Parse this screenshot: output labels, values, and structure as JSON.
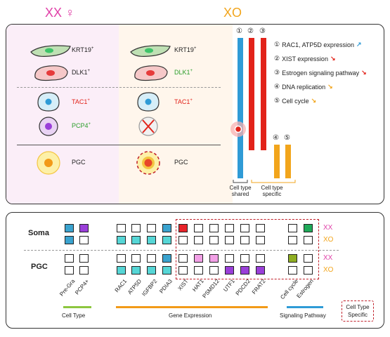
{
  "header": {
    "xx_label": "XX ♀",
    "xo_label": "XO"
  },
  "panel_a": {
    "xx_cells": [
      {
        "label": "KRT19",
        "sup": "+"
      },
      {
        "label": "DLK1",
        "sup": "+"
      },
      {
        "label": "TAC1",
        "sup": "+"
      },
      {
        "label": "PCP4",
        "sup": "+"
      },
      {
        "label": "PGC",
        "sup": ""
      }
    ],
    "xo_cells": [
      {
        "label": "KRT19",
        "sup": "+"
      },
      {
        "label": "DLK1",
        "sup": "+"
      },
      {
        "label": "TAC1",
        "sup": "+"
      },
      {
        "label": "PGC",
        "sup": ""
      }
    ],
    "bar_numbers": [
      "①",
      "②",
      "③",
      "④",
      "⑤"
    ],
    "legend": [
      {
        "num": "①",
        "text": "RAC1, ATP5D expression",
        "arrow": "↗",
        "color": "#2f9bd6"
      },
      {
        "num": "②",
        "text": "XIST expression",
        "arrow": "↘",
        "color": "#e2231a"
      },
      {
        "num": "③",
        "text": "Estrogen signaling pathway",
        "arrow": "↘",
        "color": "#e2231a"
      },
      {
        "num": "④",
        "text": "DNA replication",
        "arrow": "↘",
        "color": "#f2a51c"
      },
      {
        "num": "⑤",
        "text": "Cell cycle",
        "arrow": "↘",
        "color": "#f2a51c"
      }
    ],
    "brace_labels": {
      "shared_1": "Cell type",
      "shared_2": "shared",
      "specific_1": "Cell type",
      "specific_2": "specific"
    }
  },
  "panel_b": {
    "rows": {
      "soma": "Soma",
      "pgc": "PGC"
    },
    "side_labels": [
      "XX",
      "XO",
      "XX",
      "XO"
    ],
    "genes_cell_type": [
      "Pre-Gra",
      "PCP4+"
    ],
    "genes_expression": [
      "RAC1",
      "ATP5D",
      "IGFBP2",
      "PDIA3",
      "XIST",
      "HAT1",
      "PSMD12",
      "UTF1",
      "PDCD2",
      "FRAT2"
    ],
    "genes_pathway": [
      "Cell cycle",
      "Estrogen"
    ],
    "group_labels": {
      "cell_type": "Cell Type",
      "gene_expression": "Gene Expression",
      "signaling": "Signaling Pathway"
    },
    "specific_box": {
      "line1": "Cell Type",
      "line2": "Specific"
    },
    "colors": {
      "blue": "#3aa3cf",
      "purple": "#9a3fd9",
      "cyan": "#56d6d6",
      "red": "#e8232a",
      "pink": "#f2a0e6",
      "olive": "#8fae22",
      "green": "#1faa59",
      "xx": "#e040a8",
      "xo": "#f2a51c",
      "line_green": "#8dc63f",
      "line_orange": "#f29a18",
      "line_blue": "#2f9bd6"
    }
  }
}
